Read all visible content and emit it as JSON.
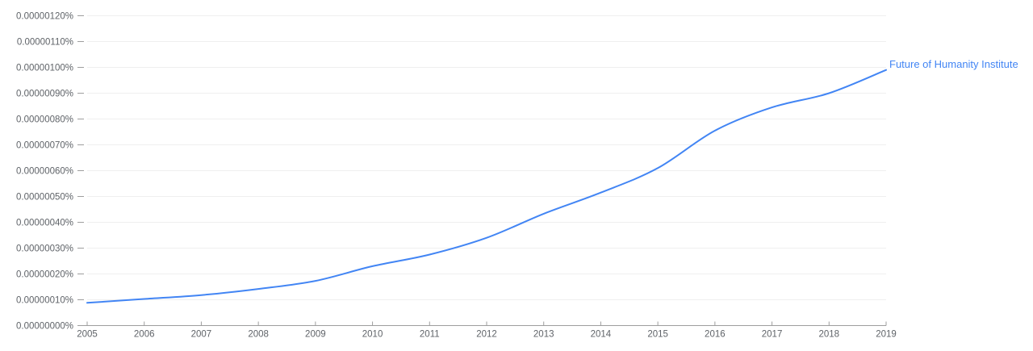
{
  "chart_data": {
    "type": "line",
    "title": "",
    "xlabel": "",
    "ylabel": "",
    "grid": true,
    "legend_position": "end-of-line",
    "x": [
      2005,
      2006,
      2007,
      2008,
      2009,
      2010,
      2011,
      2012,
      2013,
      2014,
      2015,
      2016,
      2017,
      2018,
      2019
    ],
    "x_tick_labels": [
      "2005",
      "2006",
      "2007",
      "2008",
      "2009",
      "2010",
      "2011",
      "2012",
      "2013",
      "2014",
      "2015",
      "2016",
      "2017",
      "2018",
      "2019"
    ],
    "series": [
      {
        "name": "Future of Humanity Institute",
        "values_percent": [
          8.8e-08,
          1.03e-07,
          1.18e-07,
          1.42e-07,
          1.73e-07,
          2.3e-07,
          2.75e-07,
          3.4e-07,
          4.33e-07,
          5.15e-07,
          6.1e-07,
          7.55e-07,
          8.45e-07,
          9e-07,
          9.9e-07
        ]
      }
    ],
    "ylim_percent": [
      0,
      1.2e-06
    ],
    "y_tick_step_percent": 1e-07,
    "y_tick_labels": [
      "0.00000000%",
      "0.00000010%",
      "0.00000020%",
      "0.00000030%",
      "0.00000040%",
      "0.00000050%",
      "0.00000060%",
      "0.00000070%",
      "0.00000080%",
      "0.00000090%",
      "0.00000100%",
      "0.00000110%",
      "0.00000120%"
    ],
    "colors": {
      "series": "#4285f4",
      "series_label_text": "#4285f4",
      "axis": "#9e9e9e",
      "tick_label": "#5f6368",
      "gridline": "#efefef",
      "background": "#ffffff"
    }
  }
}
